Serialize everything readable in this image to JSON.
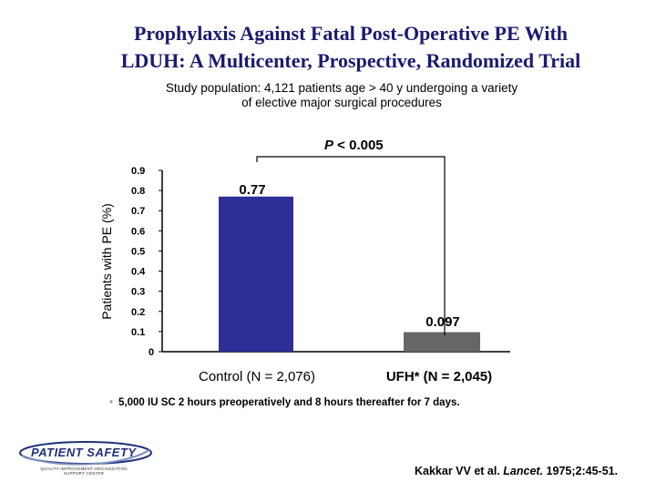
{
  "slide": {
    "title_line1": "Prophylaxis Against Fatal Post-Operative PE With",
    "title_line2": "LDUH: A Multicenter, Prospective, Randomized Trial",
    "subtitle_line1": "Study population: 4,121 patients age > 40 y undergoing a variety",
    "subtitle_line2": "of elective major surgical procedures",
    "footnote_bullet": "•",
    "footnote": "5,000 IU SC 2 hours preoperatively and 8 hours thereafter for 7 days.",
    "citation_authors": "Kakkar VV et al.",
    "citation_journal": "Lancet.",
    "citation_rest": "1975;2:45-51.",
    "logo_name": "PATIENT SAFETY",
    "logo_sub1": "QUALITY IMPROVEMENT ORGANIZATION",
    "logo_sub2": "SUPPORT CENTER"
  },
  "chart_data": {
    "type": "bar",
    "ylabel": "Patients with PE (%)",
    "ylim": [
      0,
      0.9
    ],
    "yticks": [
      "0",
      "0.1",
      "0.2",
      "0.3",
      "0.4",
      "0.5",
      "0.6",
      "0.7",
      "0.8",
      "0.9"
    ],
    "categories": [
      "Control (N = 2,076)",
      "UFH* (N = 2,045)"
    ],
    "values": [
      0.77,
      0.097
    ],
    "data_labels": [
      "0.77",
      "0.097"
    ],
    "bar_colors": [
      "#2e2e96",
      "#666666"
    ],
    "significance": {
      "p_label": "P",
      "p_text": " < 0.005"
    },
    "grid": false
  }
}
